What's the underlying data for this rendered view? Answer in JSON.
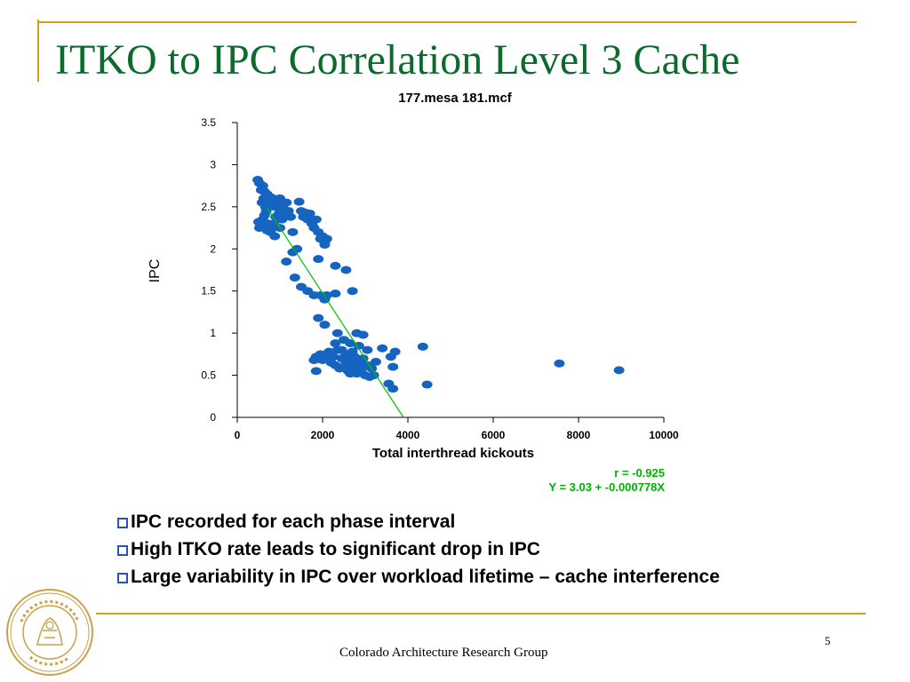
{
  "slide": {
    "title": "ITKO to IPC Correlation Level 3 Cache",
    "bullets": [
      "IPC recorded for each phase interval",
      "High ITKO rate leads to significant drop in IPC",
      "Large variability in IPC over workload lifetime – cache interference"
    ],
    "footer": "Colorado Architecture Research Group",
    "page_number": "5",
    "seal_text": "UNIVERSITY OF COLORADO 1876"
  },
  "colors": {
    "title": "#0a6b2d",
    "accent": "#d4a017",
    "points": "#1565c0",
    "fit_line": "#00c000",
    "stats": "#00b000",
    "bullet_marker": "#2a52be"
  },
  "chart_data": {
    "type": "scatter",
    "title": "177.mesa 181.mcf",
    "xlabel": "Total interthread kickouts",
    "ylabel": "IPC",
    "xlim": [
      0,
      10000
    ],
    "ylim": [
      0,
      3.5
    ],
    "xticks": [
      "0",
      "2000",
      "4000",
      "6000",
      "8000",
      "10000"
    ],
    "yticks": [
      "0",
      "0.5",
      "1",
      "1.5",
      "2",
      "2.5",
      "3",
      "3.5"
    ],
    "grid": false,
    "fit": {
      "intercept": 3.03,
      "slope": -0.000778
    },
    "stats": [
      "r = -0.925",
      "Y = 3.03 + -0.000778X"
    ],
    "points": [
      [
        480,
        2.82
      ],
      [
        520,
        2.78
      ],
      [
        560,
        2.7
      ],
      [
        600,
        2.75
      ],
      [
        640,
        2.68
      ],
      [
        620,
        2.6
      ],
      [
        580,
        2.55
      ],
      [
        660,
        2.5
      ],
      [
        700,
        2.65
      ],
      [
        720,
        2.58
      ],
      [
        680,
        2.45
      ],
      [
        640,
        2.4
      ],
      [
        600,
        2.35
      ],
      [
        560,
        2.3
      ],
      [
        520,
        2.25
      ],
      [
        500,
        2.32
      ],
      [
        760,
        2.62
      ],
      [
        800,
        2.55
      ],
      [
        840,
        2.6
      ],
      [
        880,
        2.5
      ],
      [
        920,
        2.58
      ],
      [
        960,
        2.52
      ],
      [
        1000,
        2.6
      ],
      [
        1040,
        2.55
      ],
      [
        1080,
        2.48
      ],
      [
        1100,
        2.4
      ],
      [
        1050,
        2.35
      ],
      [
        980,
        2.42
      ],
      [
        900,
        2.38
      ],
      [
        860,
        2.3
      ],
      [
        820,
        2.25
      ],
      [
        780,
        2.2
      ],
      [
        740,
        2.3
      ],
      [
        700,
        2.22
      ],
      [
        660,
        2.28
      ],
      [
        880,
        2.15
      ],
      [
        1000,
        2.25
      ],
      [
        1150,
        2.55
      ],
      [
        1200,
        2.45
      ],
      [
        1250,
        2.38
      ],
      [
        1300,
        2.2
      ],
      [
        1450,
        2.56
      ],
      [
        1500,
        2.45
      ],
      [
        1550,
        2.38
      ],
      [
        1600,
        2.43
      ],
      [
        1650,
        2.35
      ],
      [
        1700,
        2.42
      ],
      [
        1750,
        2.3
      ],
      [
        1800,
        2.25
      ],
      [
        1850,
        2.35
      ],
      [
        1900,
        2.2
      ],
      [
        1950,
        2.12
      ],
      [
        2000,
        2.15
      ],
      [
        2050,
        2.08
      ],
      [
        2100,
        2.12
      ],
      [
        1400,
        2.0
      ],
      [
        1300,
        1.96
      ],
      [
        1150,
        1.85
      ],
      [
        1900,
        1.88
      ],
      [
        2050,
        2.05
      ],
      [
        2300,
        1.8
      ],
      [
        2550,
        1.75
      ],
      [
        1350,
        1.66
      ],
      [
        1500,
        1.55
      ],
      [
        1650,
        1.5
      ],
      [
        1800,
        1.45
      ],
      [
        1950,
        1.45
      ],
      [
        2050,
        1.4
      ],
      [
        2100,
        1.45
      ],
      [
        2300,
        1.47
      ],
      [
        2700,
        1.5
      ],
      [
        1900,
        1.18
      ],
      [
        2050,
        1.1
      ],
      [
        2350,
        1.0
      ],
      [
        2800,
        1.0
      ],
      [
        2950,
        0.98
      ],
      [
        2500,
        0.92
      ],
      [
        2650,
        0.88
      ],
      [
        2850,
        0.85
      ],
      [
        2300,
        0.88
      ],
      [
        2450,
        0.8
      ],
      [
        2700,
        0.78
      ],
      [
        3050,
        0.8
      ],
      [
        3400,
        0.82
      ],
      [
        3700,
        0.78
      ],
      [
        4350,
        0.84
      ],
      [
        3600,
        0.72
      ],
      [
        3650,
        0.6
      ],
      [
        3550,
        0.4
      ],
      [
        3650,
        0.34
      ],
      [
        3200,
        0.5
      ],
      [
        4450,
        0.39
      ],
      [
        1850,
        0.72
      ],
      [
        1950,
        0.75
      ],
      [
        2050,
        0.7
      ],
      [
        2150,
        0.78
      ],
      [
        2250,
        0.72
      ],
      [
        2350,
        0.8
      ],
      [
        2450,
        0.7
      ],
      [
        2550,
        0.75
      ],
      [
        2650,
        0.68
      ],
      [
        2750,
        0.72
      ],
      [
        2850,
        0.65
      ],
      [
        2950,
        0.7
      ],
      [
        3050,
        0.62
      ],
      [
        3150,
        0.58
      ],
      [
        2200,
        0.65
      ],
      [
        2300,
        0.62
      ],
      [
        2400,
        0.58
      ],
      [
        2500,
        0.6
      ],
      [
        2600,
        0.55
      ],
      [
        2700,
        0.58
      ],
      [
        2800,
        0.52
      ],
      [
        2900,
        0.55
      ],
      [
        3000,
        0.5
      ],
      [
        3100,
        0.48
      ],
      [
        2550,
        0.64
      ],
      [
        2750,
        0.62
      ],
      [
        2650,
        0.52
      ],
      [
        2950,
        0.6
      ],
      [
        2850,
        0.58
      ],
      [
        3250,
        0.66
      ],
      [
        1850,
        0.55
      ],
      [
        1800,
        0.68
      ],
      [
        2000,
        0.68
      ],
      [
        7550,
        0.64
      ],
      [
        8950,
        0.56
      ]
    ]
  }
}
